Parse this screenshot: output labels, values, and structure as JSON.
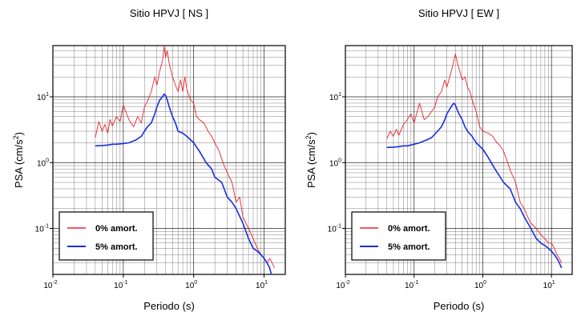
{
  "colors": {
    "series0": "#e8242c",
    "series5": "#1a2ee0",
    "grid": "#000000",
    "frame": "#000000",
    "background": "#ffffff"
  },
  "chart_data": [
    {
      "type": "line",
      "title": "Sitio HPVJ [ NS ]",
      "xlabel": "Periodo (s)",
      "ylabel_main": "PSA (cm/s",
      "ylabel_sup": "2",
      "ylabel_tail": ")",
      "xscale": "log",
      "yscale": "log",
      "xlim": [
        0.01,
        20
      ],
      "ylim": [
        0.02,
        60
      ],
      "xticks": [
        {
          "value": 0.01,
          "base": "10",
          "exp": "-2"
        },
        {
          "value": 0.1,
          "base": "10",
          "exp": "-1"
        },
        {
          "value": 1,
          "base": "10",
          "exp": "0"
        },
        {
          "value": 10,
          "base": "10",
          "exp": "1"
        }
      ],
      "yticks": [
        {
          "value": 0.1,
          "base": "10",
          "exp": "-1"
        },
        {
          "value": 1,
          "base": "10",
          "exp": "0"
        },
        {
          "value": 10,
          "base": "10",
          "exp": "1"
        }
      ],
      "grid": true,
      "legend_position": "bottom-left",
      "series": [
        {
          "name": "0% amort.",
          "color": "#e8242c",
          "x": [
            0.04,
            0.045,
            0.05,
            0.055,
            0.06,
            0.065,
            0.07,
            0.08,
            0.09,
            0.1,
            0.12,
            0.14,
            0.16,
            0.18,
            0.2,
            0.22,
            0.25,
            0.28,
            0.3,
            0.33,
            0.36,
            0.38,
            0.4,
            0.42,
            0.45,
            0.5,
            0.55,
            0.6,
            0.65,
            0.7,
            0.75,
            0.8,
            0.9,
            1.0,
            1.1,
            1.2,
            1.4,
            1.6,
            1.8,
            2.0,
            2.3,
            2.6,
            3.0,
            3.5,
            4.0,
            4.5,
            5.0,
            6.0,
            7.0,
            8.0,
            9.0,
            10.0,
            11.0,
            12.0,
            13.0,
            14.0
          ],
          "y": [
            2.4,
            4.2,
            3.0,
            3.8,
            2.8,
            4.5,
            3.6,
            5.0,
            4.2,
            7.5,
            4.5,
            3.5,
            5.0,
            4.0,
            7.0,
            8.5,
            12.0,
            20.0,
            15.0,
            25.0,
            35.0,
            58.0,
            40.0,
            50.0,
            32.0,
            20.0,
            15.0,
            12.0,
            18.0,
            12.0,
            20.0,
            13.0,
            9.0,
            8.0,
            5.0,
            4.5,
            4.0,
            3.0,
            2.5,
            2.0,
            1.5,
            1.0,
            0.7,
            0.5,
            0.25,
            0.3,
            0.15,
            0.1,
            0.07,
            0.05,
            0.04,
            0.035,
            0.03,
            0.035,
            0.03,
            0.025
          ]
        },
        {
          "name": "5% amort.",
          "color": "#1a2ee0",
          "x": [
            0.04,
            0.05,
            0.06,
            0.07,
            0.08,
            0.1,
            0.12,
            0.15,
            0.18,
            0.2,
            0.22,
            0.25,
            0.28,
            0.3,
            0.33,
            0.36,
            0.38,
            0.4,
            0.42,
            0.45,
            0.5,
            0.55,
            0.6,
            0.7,
            0.8,
            1.0,
            1.2,
            1.5,
            1.8,
            2.0,
            2.5,
            3.0,
            3.5,
            4.0,
            5.0,
            6.0,
            7.0,
            8.0,
            9.0,
            10.0,
            11.0,
            12.0,
            13.0,
            14.0
          ],
          "y": [
            1.8,
            1.82,
            1.85,
            1.9,
            1.9,
            1.95,
            2.0,
            2.2,
            2.5,
            3.0,
            3.5,
            4.0,
            5.5,
            7.0,
            9.0,
            10.0,
            11.0,
            10.5,
            9.0,
            7.0,
            5.0,
            4.0,
            3.0,
            2.8,
            2.5,
            2.0,
            1.5,
            1.0,
            0.8,
            0.6,
            0.5,
            0.3,
            0.25,
            0.2,
            0.12,
            0.07,
            0.05,
            0.045,
            0.04,
            0.035,
            0.03,
            0.025,
            0.018,
            0.014
          ]
        }
      ]
    },
    {
      "type": "line",
      "title": "Sitio HPVJ [ EW ]",
      "xlabel": "Periodo (s)",
      "ylabel_main": "PSA (cm/s",
      "ylabel_sup": "2",
      "ylabel_tail": ")",
      "xscale": "log",
      "yscale": "log",
      "xlim": [
        0.01,
        20
      ],
      "ylim": [
        0.02,
        60
      ],
      "xticks": [
        {
          "value": 0.01,
          "base": "10",
          "exp": "-2"
        },
        {
          "value": 0.1,
          "base": "10",
          "exp": "-1"
        },
        {
          "value": 1,
          "base": "10",
          "exp": "0"
        },
        {
          "value": 10,
          "base": "10",
          "exp": "1"
        }
      ],
      "yticks": [
        {
          "value": 0.1,
          "base": "10",
          "exp": "-1"
        },
        {
          "value": 1,
          "base": "10",
          "exp": "0"
        },
        {
          "value": 10,
          "base": "10",
          "exp": "1"
        }
      ],
      "grid": true,
      "legend_position": "bottom-left",
      "series": [
        {
          "name": "0% amort.",
          "color": "#e8242c",
          "x": [
            0.04,
            0.045,
            0.05,
            0.055,
            0.06,
            0.07,
            0.08,
            0.09,
            0.1,
            0.12,
            0.14,
            0.16,
            0.18,
            0.2,
            0.22,
            0.25,
            0.28,
            0.3,
            0.33,
            0.36,
            0.4,
            0.43,
            0.46,
            0.5,
            0.55,
            0.6,
            0.65,
            0.7,
            0.8,
            0.9,
            1.0,
            1.2,
            1.4,
            1.6,
            1.8,
            2.0,
            2.3,
            2.6,
            3.0,
            3.5,
            4.0,
            4.5,
            5.0,
            6.0,
            7.0,
            8.0,
            9.0,
            10.0,
            11.0,
            12.0,
            13.0,
            14.0
          ],
          "y": [
            2.3,
            3.0,
            2.5,
            3.2,
            2.6,
            3.8,
            4.5,
            5.5,
            4.0,
            8.0,
            4.5,
            5.0,
            6.0,
            7.0,
            10.0,
            12.0,
            18.0,
            14.0,
            20.0,
            28.0,
            45.0,
            32.0,
            25.0,
            18.0,
            20.0,
            14.0,
            12.0,
            9.0,
            6.0,
            3.5,
            3.0,
            2.8,
            2.5,
            2.0,
            1.8,
            1.5,
            1.0,
            0.7,
            0.5,
            0.25,
            0.2,
            0.15,
            0.12,
            0.1,
            0.08,
            0.07,
            0.06,
            0.06,
            0.05,
            0.04,
            0.035,
            0.03
          ]
        },
        {
          "name": "5% amort.",
          "color": "#1a2ee0",
          "x": [
            0.04,
            0.05,
            0.06,
            0.07,
            0.08,
            0.1,
            0.12,
            0.15,
            0.18,
            0.2,
            0.22,
            0.25,
            0.28,
            0.3,
            0.33,
            0.36,
            0.38,
            0.4,
            0.42,
            0.45,
            0.5,
            0.55,
            0.6,
            0.7,
            0.8,
            1.0,
            1.2,
            1.5,
            1.8,
            2.0,
            2.5,
            3.0,
            3.5,
            4.0,
            5.0,
            6.0,
            7.0,
            8.0,
            9.0,
            10.0,
            11.0,
            12.0,
            13.0,
            14.0
          ],
          "y": [
            1.7,
            1.72,
            1.75,
            1.8,
            1.8,
            1.9,
            2.0,
            2.2,
            2.4,
            2.7,
            3.0,
            3.5,
            4.5,
            5.5,
            6.5,
            7.5,
            8.0,
            7.5,
            6.5,
            5.5,
            4.5,
            3.5,
            3.0,
            2.5,
            2.0,
            1.6,
            1.2,
            0.8,
            0.6,
            0.5,
            0.4,
            0.25,
            0.2,
            0.15,
            0.1,
            0.07,
            0.06,
            0.055,
            0.05,
            0.045,
            0.04,
            0.035,
            0.03,
            0.025
          ]
        }
      ]
    }
  ]
}
